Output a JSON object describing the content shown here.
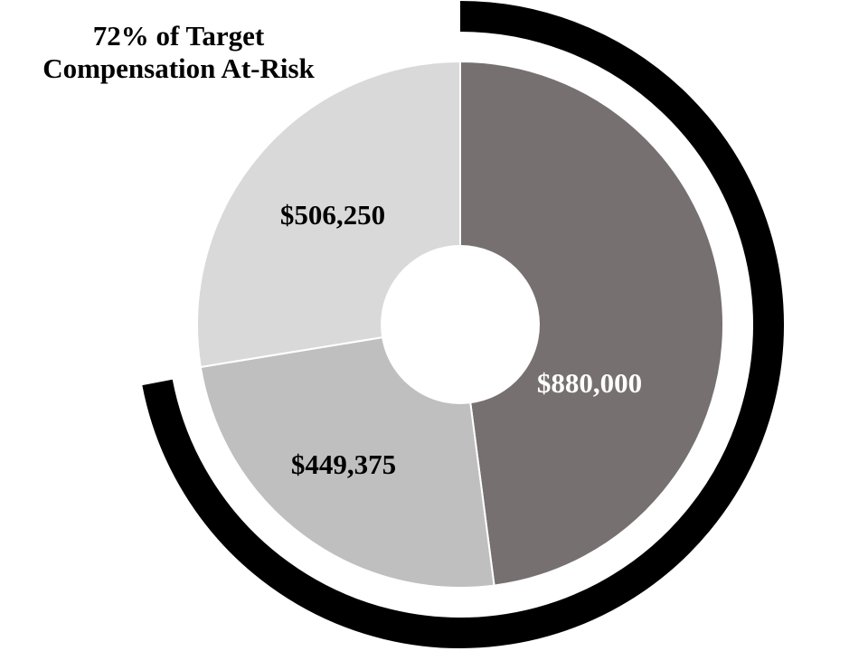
{
  "chart_data": {
    "type": "pie",
    "donut": true,
    "title": "72% of Target Compensation At-Risk",
    "title_lines": [
      "72% of Target",
      "Compensation At-Risk"
    ],
    "slices": [
      {
        "value": 880000,
        "label": "$880,000",
        "color": "#767070",
        "label_color": "#ffffff"
      },
      {
        "value": 449375,
        "label": "$449,375",
        "color": "#bfbfbf",
        "label_color": "#000000"
      },
      {
        "value": 506250,
        "label": "$506,250",
        "color": "#d9d9d9",
        "label_color": "#000000"
      }
    ],
    "at_risk_arc": {
      "percent": 72,
      "color": "#000000"
    },
    "legend": "none"
  }
}
